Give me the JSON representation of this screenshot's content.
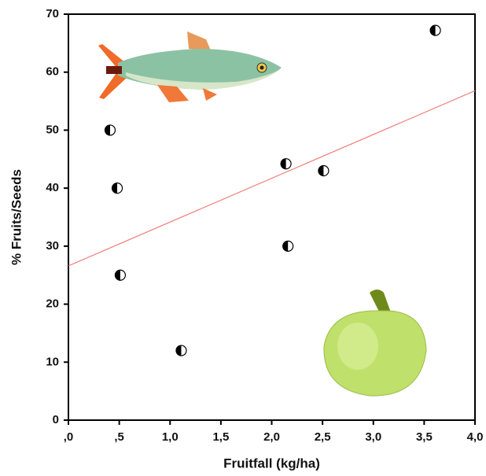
{
  "chart_data": {
    "type": "scatter",
    "xlabel": "Fruitfall (kg/ha)",
    "ylabel": "% Fruits/Seeds",
    "x": [
      0.41,
      0.48,
      0.51,
      1.11,
      2.14,
      2.16,
      2.51,
      3.61
    ],
    "values": [
      50,
      40,
      25,
      12,
      44.2,
      30,
      43,
      67.2
    ],
    "color": "#000000",
    "trendline": {
      "x": [
        0,
        4
      ],
      "values": [
        26.6,
        56.8
      ],
      "color": "#f08080"
    },
    "xlim": [
      0,
      4
    ],
    "ylim": [
      0,
      70
    ],
    "xticks": [
      {
        "value": 0,
        "label": ",0"
      },
      {
        "value": 0.5,
        "label": ",5"
      },
      {
        "value": 1,
        "label": "1,0"
      },
      {
        "value": 1.5,
        "label": "1,5"
      },
      {
        "value": 2,
        "label": "2,0"
      },
      {
        "value": 2.5,
        "label": "2,5"
      },
      {
        "value": 3,
        "label": "3,0"
      },
      {
        "value": 3.5,
        "label": "3,5"
      },
      {
        "value": 4,
        "label": "4,0"
      }
    ],
    "yticks": [
      0,
      10,
      20,
      30,
      40,
      50,
      60,
      70
    ]
  }
}
